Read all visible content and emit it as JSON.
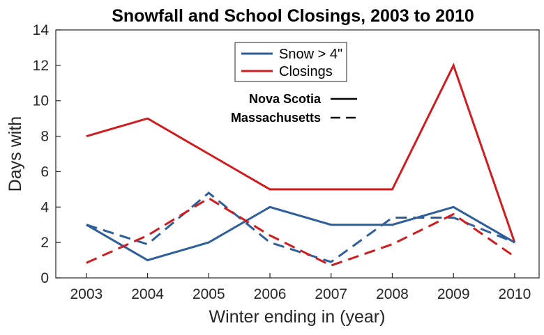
{
  "chart_data": {
    "type": "line",
    "title": "Snowfall and School Closings, 2003 to 2010",
    "xlabel": "Winter ending in (year)",
    "ylabel": "Days with",
    "x": [
      2003,
      2004,
      2005,
      2006,
      2007,
      2008,
      2009,
      2010
    ],
    "xlim": [
      2002.5,
      2010.4
    ],
    "ylim": [
      0,
      14
    ],
    "yticks": [
      0,
      2,
      4,
      6,
      8,
      10,
      12,
      14
    ],
    "grid": false,
    "legend": {
      "placement": "top-center",
      "entries": [
        {
          "label": "Snow > 4\"",
          "color": "#2E5F9A"
        },
        {
          "label": "Closings",
          "color": "#D01C1F"
        }
      ],
      "line_styles": [
        {
          "label": "Nova Scotia",
          "style": "solid"
        },
        {
          "label": "Massachusetts",
          "style": "dashed"
        }
      ]
    },
    "series": [
      {
        "color": "#2E5F9A",
        "style": "solid",
        "values": [
          3,
          1,
          2,
          4,
          3,
          3,
          4,
          2
        ]
      },
      {
        "color": "#D01C1F",
        "style": "solid",
        "values": [
          8,
          9,
          7,
          5,
          5,
          5,
          12,
          2
        ]
      },
      {
        "color": "#2E5F9A",
        "style": "dashed",
        "values": [
          3,
          1.9,
          4.8,
          2.0,
          0.9,
          3.4,
          3.4,
          2.0
        ]
      },
      {
        "color": "#D01C1F",
        "style": "dashed",
        "values": [
          0.85,
          2.4,
          4.5,
          2.4,
          0.7,
          1.9,
          3.6,
          1.2
        ]
      }
    ]
  }
}
